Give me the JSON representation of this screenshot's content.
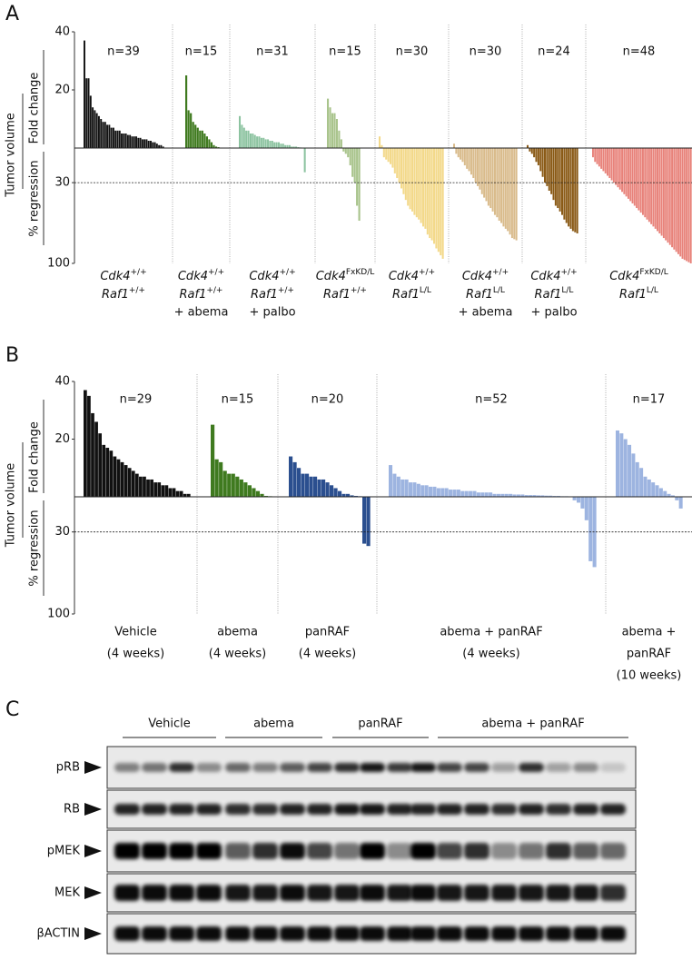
{
  "chart_data": [
    {
      "type": "bar",
      "panel": "A",
      "y_title": "Tumor volume",
      "ylabel_top": "Fold change",
      "ylabel_bottom": "% regression",
      "ylim": [
        0,
        40
      ],
      "yticks": [
        20,
        40
      ],
      "y2lim": [
        0,
        -100
      ],
      "y2ticks": [
        {
          "value": -30,
          "label": "30"
        },
        {
          "value": -100,
          "label": "100"
        }
      ],
      "hline": -30,
      "series": [
        {
          "n_label": "n=39",
          "color": "#111111",
          "label": [
            {
              "gene": "Cdk4",
              "allele": "+/+"
            },
            {
              "gene": "Raf1",
              "allele": "+/+"
            }
          ],
          "values": [
            37,
            24,
            24,
            18,
            14,
            13,
            12,
            11,
            10,
            9,
            9,
            8,
            8,
            7,
            7,
            6,
            6,
            6,
            5,
            5,
            5,
            4.5,
            4.5,
            4,
            4,
            4,
            3.5,
            3.5,
            3,
            3,
            3,
            2.5,
            2.5,
            2,
            2,
            1.5,
            1,
            1,
            0.5
          ]
        },
        {
          "n_label": "n=15",
          "color": "#3f7a1f",
          "label": [
            {
              "gene": "Cdk4",
              "allele": "+/+"
            },
            {
              "gene": "Raf1",
              "allele": "+/+"
            }
          ],
          "treatment": "+ abema",
          "values": [
            25,
            13,
            12,
            9,
            8,
            7,
            6,
            6,
            5,
            4,
            3,
            2,
            1,
            0.5,
            0.3
          ]
        },
        {
          "n_label": "n=31",
          "color": "#8cc3a0",
          "label": [
            {
              "gene": "Cdk4",
              "allele": "+/+"
            },
            {
              "gene": "Raf1",
              "allele": "+/+"
            }
          ],
          "treatment": "+ palbo",
          "values": [
            11,
            8,
            7,
            6,
            6,
            5,
            5,
            4.5,
            4,
            4,
            3.5,
            3.5,
            3,
            3,
            2.5,
            2.5,
            2,
            2,
            2,
            1.5,
            1.5,
            1,
            1,
            1,
            0.5,
            0.5,
            0.5,
            0.3,
            0.2,
            0.1,
            -21
          ]
        },
        {
          "n_label": "n=15",
          "color": "#a9c48c",
          "label": [
            {
              "gene": "Cdk4",
              "allele": "FxKD/L"
            },
            {
              "gene": "Raf1",
              "allele": "+/+"
            }
          ],
          "values": [
            17,
            14,
            12,
            12,
            10,
            6,
            3,
            -3,
            -5,
            -8,
            -15,
            -25,
            -30,
            -50,
            -63
          ]
        },
        {
          "n_label": "n=30",
          "color": "#f3d98a",
          "label": [
            {
              "gene": "Cdk4",
              "allele": "+/+"
            },
            {
              "gene": "Raf1",
              "allele": "L/L"
            }
          ],
          "values": [
            4,
            1,
            -8,
            -10,
            -12,
            -14,
            -17,
            -22,
            -26,
            -30,
            -35,
            -40,
            -45,
            -50,
            -53,
            -55,
            -58,
            -60,
            -62,
            -65,
            -68,
            -70,
            -75,
            -78,
            -80,
            -83,
            -87,
            -90,
            -93,
            -96
          ]
        },
        {
          "n_label": "n=30",
          "color": "#d9bb8b",
          "label": [
            {
              "gene": "Cdk4",
              "allele": "+/+"
            },
            {
              "gene": "Raf1",
              "allele": "L/L"
            }
          ],
          "treatment": "+ abema",
          "values": [
            1.5,
            -5,
            -8,
            -10,
            -12,
            -15,
            -18,
            -20,
            -23,
            -26,
            -30,
            -33,
            -36,
            -40,
            -43,
            -46,
            -50,
            -52,
            -55,
            -58,
            -60,
            -63,
            -65,
            -68,
            -70,
            -72,
            -75,
            -78,
            -79,
            -80
          ]
        },
        {
          "n_label": "n=24",
          "color": "#8a5a16",
          "label": [
            {
              "gene": "Cdk4",
              "allele": "+/+"
            },
            {
              "gene": "Raf1",
              "allele": "L/L"
            }
          ],
          "treatment": "+ palbo",
          "values": [
            1,
            -3,
            -5,
            -8,
            -12,
            -15,
            -20,
            -25,
            -30,
            -33,
            -37,
            -40,
            -45,
            -50,
            -52,
            -55,
            -58,
            -62,
            -65,
            -68,
            -70,
            -72,
            -73,
            -74
          ]
        },
        {
          "n_label": "n=48",
          "color": "#e8827a",
          "label": [
            {
              "gene": "Cdk4",
              "allele": "FxKD/L"
            },
            {
              "gene": "Raf1",
              "allele": "L/L"
            }
          ],
          "values": [
            -8,
            -12,
            -14,
            -16,
            -18,
            -20,
            -22,
            -24,
            -26,
            -28,
            -30,
            -32,
            -34,
            -36,
            -38,
            -40,
            -42,
            -44,
            -46,
            -48,
            -50,
            -52,
            -54,
            -56,
            -58,
            -60,
            -62,
            -64,
            -66,
            -68,
            -70,
            -72,
            -74,
            -76,
            -78,
            -80,
            -82,
            -84,
            -86,
            -88,
            -90,
            -92,
            -94,
            -96,
            -97,
            -98,
            -99,
            -100
          ]
        }
      ]
    },
    {
      "type": "bar",
      "panel": "B",
      "y_title": "Tumor volume",
      "ylabel_top": "Fold change",
      "ylabel_bottom": "% regression",
      "ylim": [
        0,
        40
      ],
      "yticks": [
        20,
        40
      ],
      "y2lim": [
        0,
        -100
      ],
      "y2ticks": [
        {
          "value": -30,
          "label": "30"
        },
        {
          "value": -100,
          "label": "100"
        }
      ],
      "hline": -30,
      "series": [
        {
          "n_label": "n=29",
          "color": "#111111",
          "label_lines": [
            "Vehicle",
            "(4 weeks)"
          ],
          "values": [
            37,
            35,
            29,
            26,
            22,
            18,
            17,
            16,
            14,
            13,
            12,
            11,
            10,
            9,
            8,
            7,
            7,
            6,
            6,
            5,
            5,
            4,
            4,
            3,
            3,
            2,
            2,
            1,
            1
          ]
        },
        {
          "n_label": "n=15",
          "color": "#3f7a1f",
          "label_lines": [
            "abema",
            "(4 weeks)"
          ],
          "values": [
            25,
            13,
            12,
            9,
            8,
            8,
            7,
            6,
            5,
            4,
            3,
            2,
            1,
            0.3,
            0.2
          ]
        },
        {
          "n_label": "n=20",
          "color": "#2b4f8f",
          "label_lines": [
            "panRAF",
            "(4 weeks)"
          ],
          "values": [
            14,
            12,
            10,
            8,
            8,
            7,
            7,
            6,
            6,
            5,
            4,
            3,
            2,
            1,
            1,
            0.5,
            0.3,
            0.2,
            -40,
            -42
          ]
        },
        {
          "n_label": "n=52",
          "color": "#9db4e0",
          "label_lines": [
            "abema + panRAF",
            "(4 weeks)"
          ],
          "values": [
            11,
            8,
            7,
            6,
            6,
            5,
            5,
            4.5,
            4,
            4,
            3.5,
            3.5,
            3,
            3,
            3,
            2.5,
            2.5,
            2.5,
            2,
            2,
            2,
            2,
            1.5,
            1.5,
            1.5,
            1.5,
            1,
            1,
            1,
            1,
            1,
            0.8,
            0.8,
            0.8,
            0.6,
            0.6,
            0.6,
            0.5,
            0.5,
            0.4,
            0.4,
            0.3,
            0.3,
            0.2,
            0.2,
            0.1,
            -3,
            -5,
            -10,
            -20,
            -55,
            -60
          ]
        },
        {
          "n_label": "n=17",
          "color": "#9db4e0",
          "label_lines": [
            "abema +",
            "panRAF",
            "(10 weeks)"
          ],
          "values": [
            23,
            22,
            20,
            18,
            15,
            12,
            10,
            7,
            6,
            5,
            4,
            3,
            2,
            1,
            0.5,
            -3,
            -10
          ]
        }
      ]
    }
  ],
  "blot": {
    "panel": "C",
    "groups": [
      "Vehicle",
      "abema",
      "panRAF",
      "abema + panRAF"
    ],
    "rows": [
      "pRB",
      "RB",
      "pMEK",
      "MEK",
      "βACTIN"
    ]
  }
}
